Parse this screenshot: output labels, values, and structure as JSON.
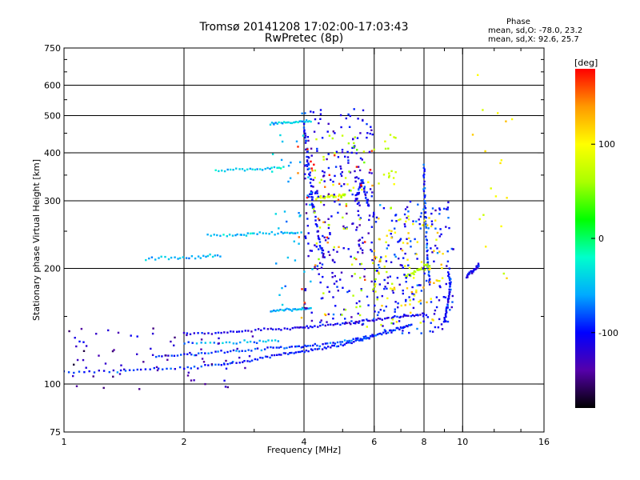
{
  "chart_data": {
    "type": "scatter",
    "title": "Tromsø 20141208 17:02:00-17:03:43",
    "subtitle": "RwPretec (8p)",
    "xlabel": "Frequency [MHz]",
    "ylabel": "Stationary phase Virtual Height [km]",
    "x_scale": "log",
    "y_scale": "log",
    "xlim": [
      1,
      16
    ],
    "ylim": [
      75,
      750
    ],
    "x_ticks": [
      1,
      2,
      4,
      6,
      8,
      10,
      16
    ],
    "x_gridlines": [
      2,
      4,
      6,
      8,
      10
    ],
    "x_minor_ticks": [
      3,
      5,
      7,
      9,
      12,
      14
    ],
    "y_ticks": [
      75,
      100,
      200,
      300,
      400,
      500,
      600,
      750
    ],
    "y_minor_ticks": [
      150,
      250,
      350,
      450,
      550,
      650,
      700
    ],
    "grid": true,
    "phase_info": {
      "heading": "Phase",
      "o_line": "mean, sd,O: -78.0, 23.2",
      "x_line": "mean, sd,X: 92.6, 25.7"
    },
    "colorbar": {
      "label": "[deg]",
      "range": [
        -180,
        180
      ],
      "ticks": [
        100,
        0,
        -100
      ],
      "colormap": "rainbow-black-to-red",
      "stops": [
        "#000000",
        "#5500aa",
        "#0000ff",
        "#00aaff",
        "#00ffcc",
        "#00ff00",
        "#aaff00",
        "#ffff00",
        "#ff9900",
        "#ff0000"
      ]
    },
    "series": [
      {
        "kind": "trace",
        "phase": -95,
        "spread": 0.012,
        "points": [
          [
            1.0,
            107
          ],
          [
            1.3,
            108
          ],
          [
            1.6,
            109
          ],
          [
            2.0,
            110
          ],
          [
            2.4,
            112
          ],
          [
            2.8,
            114
          ],
          [
            3.2,
            117
          ],
          [
            3.6,
            120
          ],
          [
            4.0,
            122
          ],
          [
            4.5,
            124
          ],
          [
            5.0,
            127
          ],
          [
            5.5,
            130
          ],
          [
            6.0,
            133
          ]
        ]
      },
      {
        "kind": "trace",
        "phase": -90,
        "spread": 0.012,
        "points": [
          [
            1.7,
            118
          ],
          [
            2.0,
            119
          ],
          [
            2.4,
            121
          ],
          [
            2.8,
            122
          ],
          [
            3.3,
            124
          ],
          [
            3.8,
            125
          ],
          [
            4.2,
            126
          ],
          [
            4.8,
            128
          ],
          [
            5.4,
            131
          ],
          [
            6.0,
            134
          ],
          [
            6.5,
            137
          ],
          [
            7.0,
            140
          ],
          [
            7.5,
            143
          ]
        ]
      },
      {
        "kind": "trace",
        "phase": -110,
        "spread": 0.012,
        "points": [
          [
            2.0,
            135
          ],
          [
            2.4,
            136
          ],
          [
            2.8,
            137
          ],
          [
            3.3,
            139
          ],
          [
            3.8,
            140
          ],
          [
            4.2,
            141
          ],
          [
            4.8,
            143
          ],
          [
            5.4,
            145
          ],
          [
            6.0,
            147
          ],
          [
            6.7,
            149
          ],
          [
            7.4,
            151
          ],
          [
            8.2,
            152
          ]
        ]
      },
      {
        "kind": "trace",
        "phase": -60,
        "spread": 0.014,
        "points": [
          [
            2.0,
            128
          ],
          [
            2.5,
            128
          ],
          [
            3.0,
            129
          ],
          [
            3.5,
            130
          ]
        ]
      },
      {
        "kind": "trace",
        "phase": -55,
        "spread": 0.014,
        "points": [
          [
            3.3,
            155
          ],
          [
            3.6,
            156
          ],
          [
            3.9,
            157
          ],
          [
            4.2,
            158
          ]
        ]
      },
      {
        "kind": "trace",
        "phase": -55,
        "spread": 0.014,
        "points": [
          [
            1.6,
            212
          ],
          [
            1.9,
            213
          ],
          [
            2.2,
            214
          ],
          [
            2.5,
            216
          ]
        ]
      },
      {
        "kind": "trace",
        "phase": -50,
        "spread": 0.014,
        "points": [
          [
            2.3,
            243
          ],
          [
            2.7,
            245
          ],
          [
            3.0,
            246
          ],
          [
            3.5,
            247
          ],
          [
            3.9,
            248
          ]
        ]
      },
      {
        "kind": "trace",
        "phase": -45,
        "spread": 0.012,
        "points": [
          [
            2.4,
            360
          ],
          [
            2.8,
            362
          ],
          [
            3.2,
            364
          ],
          [
            3.6,
            366
          ]
        ]
      },
      {
        "kind": "trace",
        "phase": -50,
        "spread": 0.012,
        "points": [
          [
            3.3,
            478
          ],
          [
            3.6,
            480
          ],
          [
            3.9,
            482
          ],
          [
            4.2,
            484
          ]
        ]
      },
      {
        "kind": "trace",
        "phase": -100,
        "spread": 0.02,
        "points": [
          [
            4.0,
            470
          ],
          [
            4.05,
            420
          ],
          [
            4.1,
            380
          ],
          [
            4.15,
            340
          ],
          [
            4.2,
            300
          ],
          [
            4.3,
            260
          ],
          [
            4.4,
            230
          ],
          [
            4.5,
            210
          ]
        ]
      },
      {
        "kind": "trace",
        "phase": -110,
        "spread": 0.02,
        "points": [
          [
            5.4,
            300
          ],
          [
            5.5,
            320
          ],
          [
            5.6,
            340
          ],
          [
            5.7,
            310
          ],
          [
            5.8,
            290
          ]
        ]
      },
      {
        "kind": "trace",
        "phase": -90,
        "spread": 0.015,
        "points": [
          [
            8.0,
            370
          ],
          [
            8.0,
            330
          ],
          [
            8.05,
            290
          ],
          [
            8.1,
            250
          ],
          [
            8.15,
            220
          ],
          [
            8.2,
            200
          ],
          [
            8.3,
            180
          ]
        ]
      },
      {
        "kind": "trace",
        "phase": -100,
        "spread": 0.015,
        "points": [
          [
            9.0,
            145
          ],
          [
            9.1,
            155
          ],
          [
            9.2,
            165
          ],
          [
            9.3,
            175
          ],
          [
            9.3,
            185
          ],
          [
            9.2,
            195
          ]
        ]
      },
      {
        "kind": "trace",
        "phase": -110,
        "spread": 0.015,
        "points": [
          [
            10.2,
            190
          ],
          [
            10.5,
            195
          ],
          [
            10.8,
            200
          ],
          [
            11.0,
            205
          ]
        ]
      },
      {
        "kind": "trace",
        "phase": 80,
        "spread": 0.02,
        "points": [
          [
            4.3,
            305
          ],
          [
            4.6,
            307
          ],
          [
            4.9,
            309
          ],
          [
            5.1,
            310
          ]
        ]
      },
      {
        "kind": "trace",
        "phase": 60,
        "spread": 0.02,
        "points": [
          [
            7.2,
            190
          ],
          [
            7.5,
            195
          ],
          [
            7.9,
            200
          ],
          [
            8.3,
            205
          ]
        ]
      },
      {
        "kind": "cloud",
        "phase": -110,
        "fmin": 4.0,
        "fmax": 6.0,
        "hmin": 140,
        "hmax": 520,
        "n": 260
      },
      {
        "kind": "cloud",
        "phase": 70,
        "fmin": 4.2,
        "fmax": 6.8,
        "hmin": 140,
        "hmax": 450,
        "n": 90
      },
      {
        "kind": "cloud",
        "phase": -100,
        "fmin": 5.8,
        "fmax": 9.5,
        "hmin": 135,
        "hmax": 300,
        "n": 200
      },
      {
        "kind": "cloud",
        "phase": 110,
        "fmin": 6.0,
        "fmax": 9.0,
        "hmin": 140,
        "hmax": 280,
        "n": 80
      },
      {
        "kind": "cloud",
        "phase": 160,
        "fmin": 3.8,
        "fmax": 6.2,
        "hmin": 120,
        "hmax": 420,
        "n": 35
      },
      {
        "kind": "cloud",
        "phase": -60,
        "fmin": 3.3,
        "fmax": 4.2,
        "hmin": 160,
        "hmax": 510,
        "n": 40
      },
      {
        "kind": "cloud",
        "phase": -130,
        "fmin": 1.0,
        "fmax": 3.0,
        "hmin": 95,
        "hmax": 140,
        "n": 70
      },
      {
        "kind": "cloud",
        "phase": 100,
        "fmin": 10.0,
        "fmax": 13.5,
        "hmin": 180,
        "hmax": 640,
        "n": 18
      }
    ]
  }
}
